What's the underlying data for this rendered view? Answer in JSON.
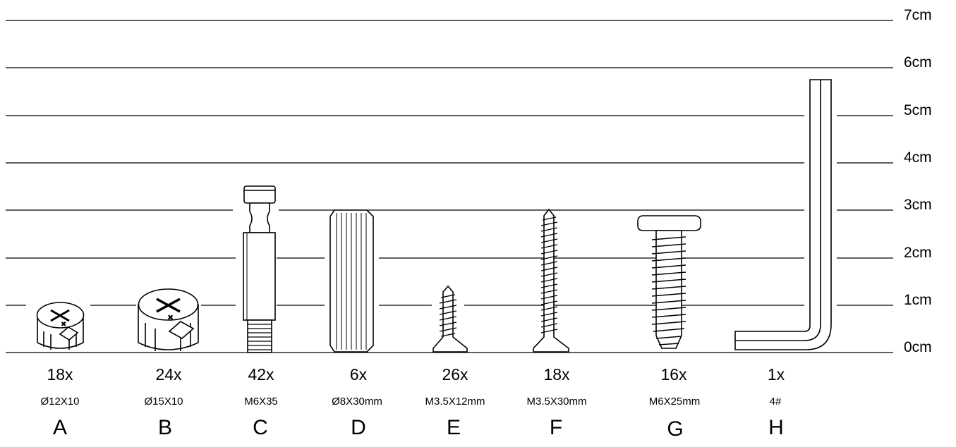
{
  "scale": {
    "unit_labels": [
      "0cm",
      "1cm",
      "2cm",
      "3cm",
      "4cm",
      "5cm",
      "6cm",
      "7cm"
    ]
  },
  "parts": [
    {
      "letter": "A",
      "quantity": "18x",
      "size": "Ø12X10",
      "icon": "cam-lock-small-icon"
    },
    {
      "letter": "B",
      "quantity": "24x",
      "size": "Ø15X10",
      "icon": "cam-lock-large-icon"
    },
    {
      "letter": "C",
      "quantity": "42x",
      "size": "M6X35",
      "icon": "cam-bolt-icon"
    },
    {
      "letter": "D",
      "quantity": "6x",
      "size": "Ø8X30mm",
      "icon": "wooden-dowel-icon"
    },
    {
      "letter": "E",
      "quantity": "26x",
      "size": "M3.5X12mm",
      "icon": "short-screw-icon"
    },
    {
      "letter": "F",
      "quantity": "18x",
      "size": "M3.5X30mm",
      "icon": "long-screw-icon"
    },
    {
      "letter": "G",
      "quantity": "16x",
      "size": "M6X25mm",
      "icon": "pan-head-screw-icon"
    },
    {
      "letter": "H",
      "quantity": "1x",
      "size": "4#",
      "icon": "allen-key-icon"
    }
  ]
}
